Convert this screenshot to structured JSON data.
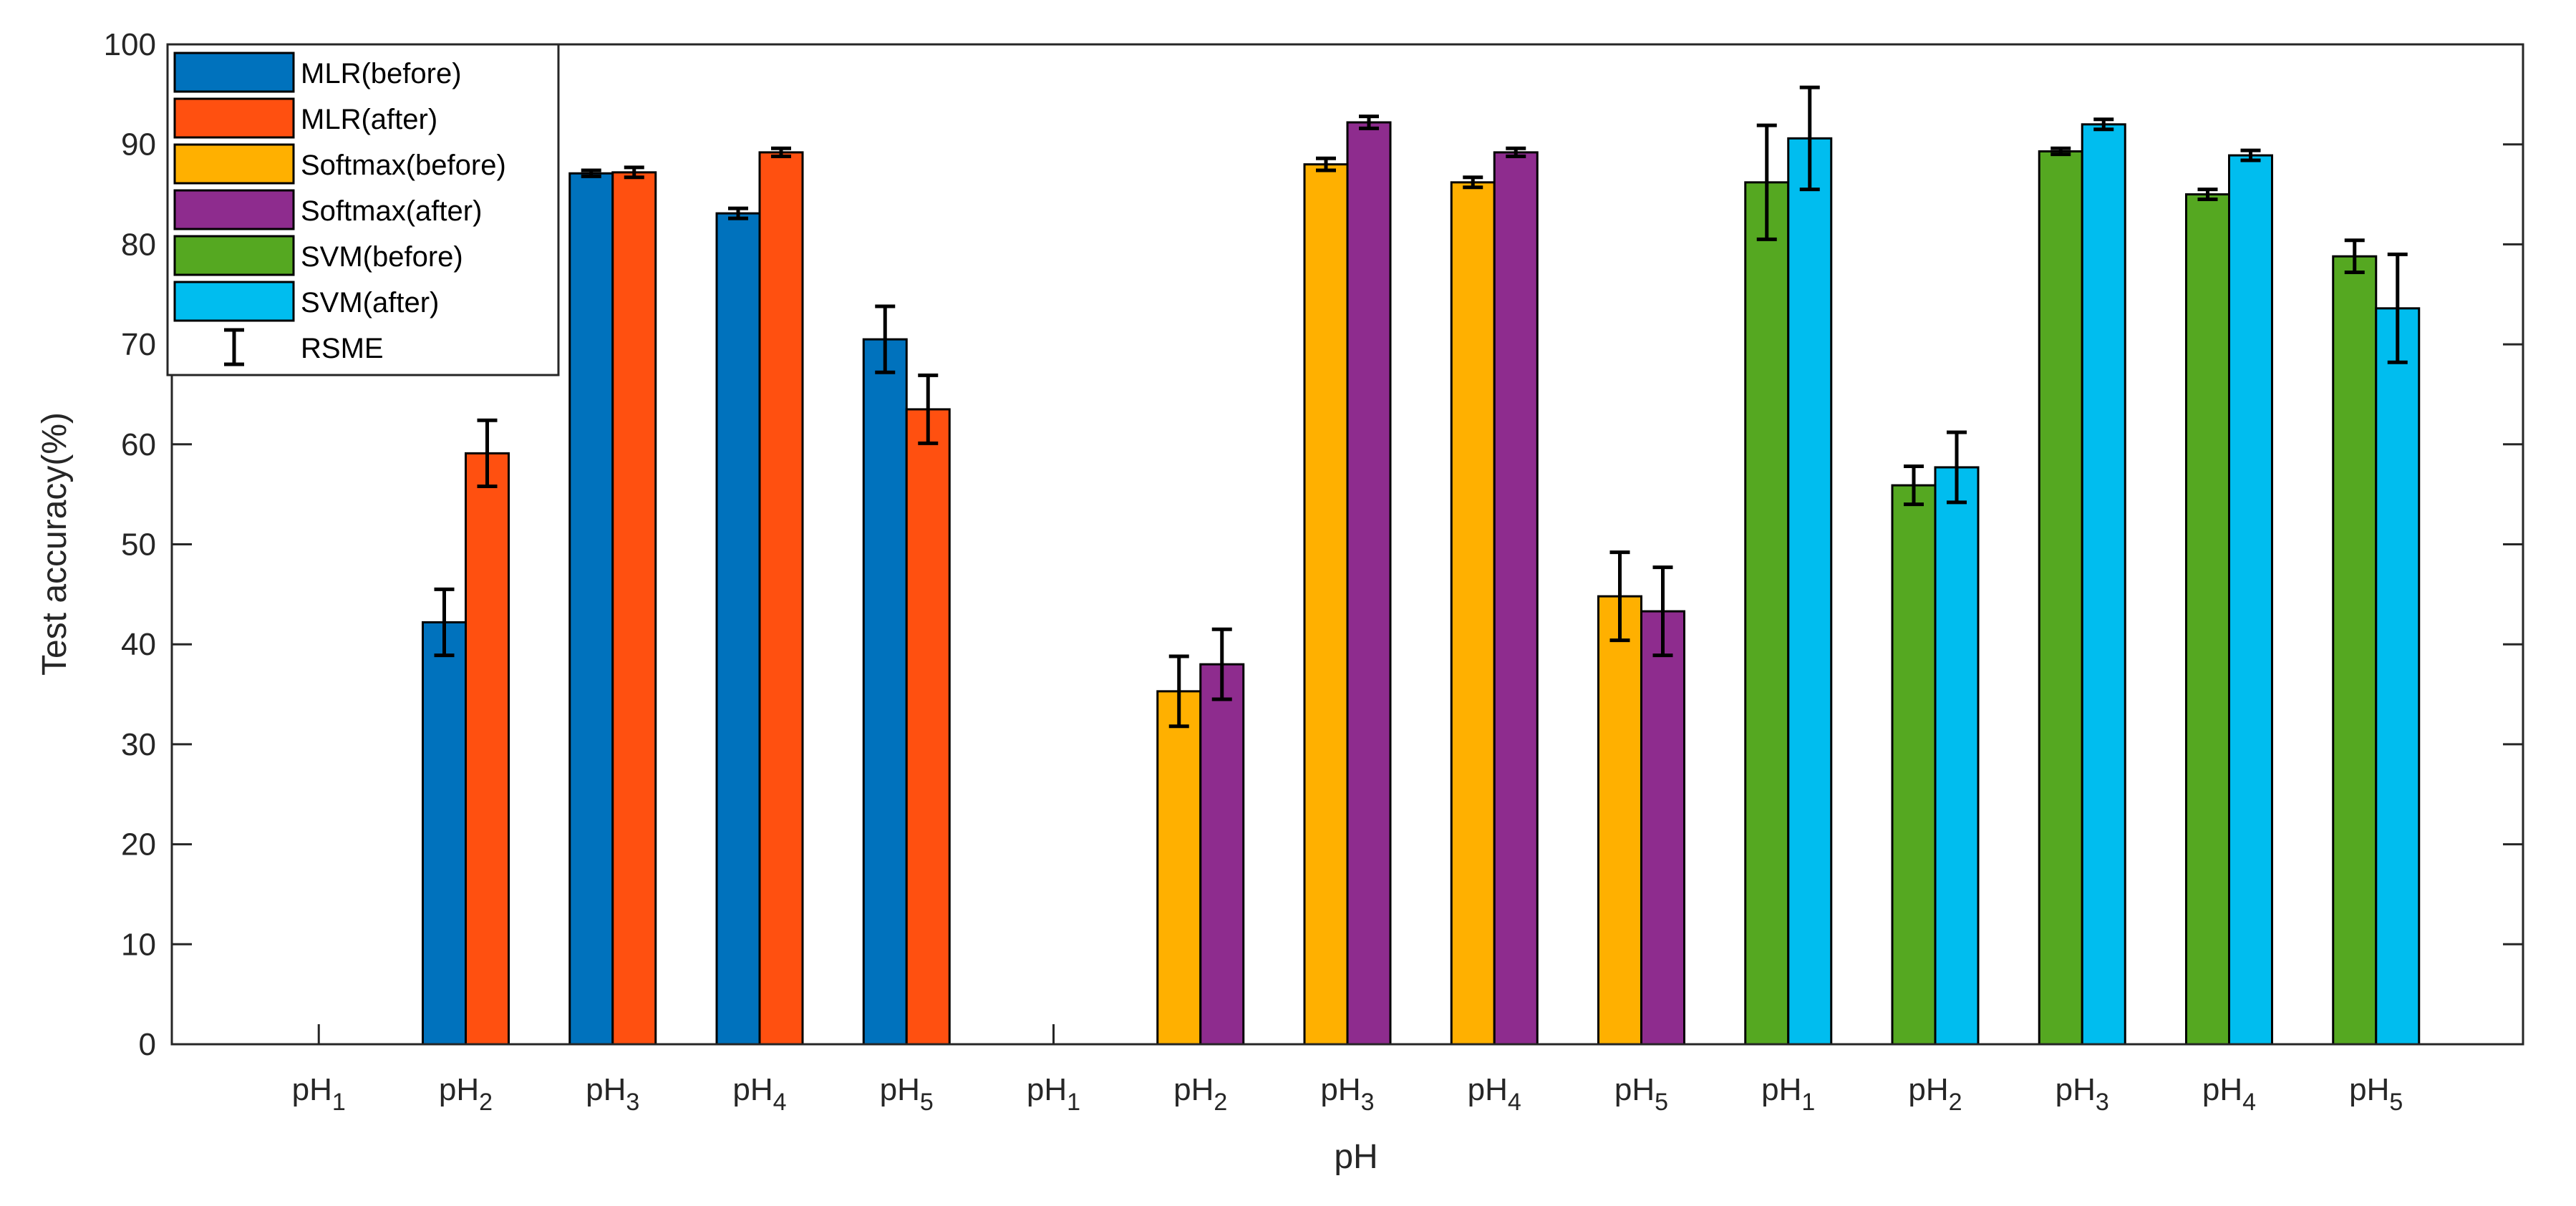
{
  "chart_data": {
    "type": "bar",
    "title": "",
    "xlabel": "pH",
    "ylabel": "Test accuracy(%)",
    "ylim": [
      0,
      100
    ],
    "yticks": [
      0,
      10,
      20,
      30,
      40,
      50,
      60,
      70,
      80,
      90,
      100
    ],
    "categories": [
      {
        "label": "pH",
        "sub": "1"
      },
      {
        "label": "pH",
        "sub": "2"
      },
      {
        "label": "pH",
        "sub": "3"
      },
      {
        "label": "pH",
        "sub": "4"
      },
      {
        "label": "pH",
        "sub": "5"
      },
      {
        "label": "pH",
        "sub": "1"
      },
      {
        "label": "pH",
        "sub": "2"
      },
      {
        "label": "pH",
        "sub": "3"
      },
      {
        "label": "pH",
        "sub": "4"
      },
      {
        "label": "pH",
        "sub": "5"
      },
      {
        "label": "pH",
        "sub": "1"
      },
      {
        "label": "pH",
        "sub": "2"
      },
      {
        "label": "pH",
        "sub": "3"
      },
      {
        "label": "pH",
        "sub": "4"
      },
      {
        "label": "pH",
        "sub": "5"
      }
    ],
    "series": [
      {
        "name": "MLR(before)",
        "color": "#0072BD",
        "pair_index": 0,
        "values": [
          0,
          42.2,
          87.1,
          83.1,
          70.5,
          null,
          null,
          null,
          null,
          null,
          null,
          null,
          null,
          null,
          null
        ],
        "errors": [
          0,
          3.3,
          0.3,
          0.5,
          3.3,
          null,
          null,
          null,
          null,
          null,
          null,
          null,
          null,
          null,
          null
        ]
      },
      {
        "name": "MLR(after)",
        "color": "#FF5010",
        "pair_index": 1,
        "values": [
          0,
          59.1,
          87.2,
          89.2,
          63.5,
          null,
          null,
          null,
          null,
          null,
          null,
          null,
          null,
          null,
          null
        ],
        "errors": [
          0,
          3.3,
          0.5,
          0.4,
          3.4,
          null,
          null,
          null,
          null,
          null,
          null,
          null,
          null,
          null,
          null
        ]
      },
      {
        "name": "Softmax(before)",
        "color": "#FFB000",
        "pair_index": 0,
        "values": [
          null,
          null,
          null,
          null,
          null,
          0,
          35.3,
          88.0,
          86.2,
          44.8,
          null,
          null,
          null,
          null,
          null
        ],
        "errors": [
          null,
          null,
          null,
          null,
          null,
          0,
          3.5,
          0.6,
          0.5,
          4.4,
          null,
          null,
          null,
          null,
          null
        ]
      },
      {
        "name": "Softmax(after)",
        "color": "#8E2C8E",
        "pair_index": 1,
        "values": [
          null,
          null,
          null,
          null,
          null,
          0,
          38.0,
          92.2,
          89.2,
          43.3,
          null,
          null,
          null,
          null,
          null
        ],
        "errors": [
          null,
          null,
          null,
          null,
          null,
          0,
          3.5,
          0.6,
          0.4,
          4.4,
          null,
          null,
          null,
          null,
          null
        ]
      },
      {
        "name": "SVM(before)",
        "color": "#55A821",
        "pair_index": 0,
        "values": [
          null,
          null,
          null,
          null,
          null,
          null,
          null,
          null,
          null,
          null,
          86.2,
          55.9,
          89.3,
          85.0,
          78.8
        ],
        "errors": [
          null,
          null,
          null,
          null,
          null,
          null,
          null,
          null,
          null,
          null,
          5.7,
          1.9,
          0.3,
          0.5,
          1.6
        ]
      },
      {
        "name": "SVM(after)",
        "color": "#00BDEF",
        "pair_index": 1,
        "values": [
          null,
          null,
          null,
          null,
          null,
          null,
          null,
          null,
          null,
          null,
          90.6,
          57.7,
          92.0,
          88.9,
          73.6
        ],
        "errors": [
          null,
          null,
          null,
          null,
          null,
          null,
          null,
          null,
          null,
          null,
          5.1,
          3.5,
          0.5,
          0.5,
          5.4
        ]
      }
    ],
    "error_legend_label": "RSME",
    "legend_position": "top-left"
  }
}
